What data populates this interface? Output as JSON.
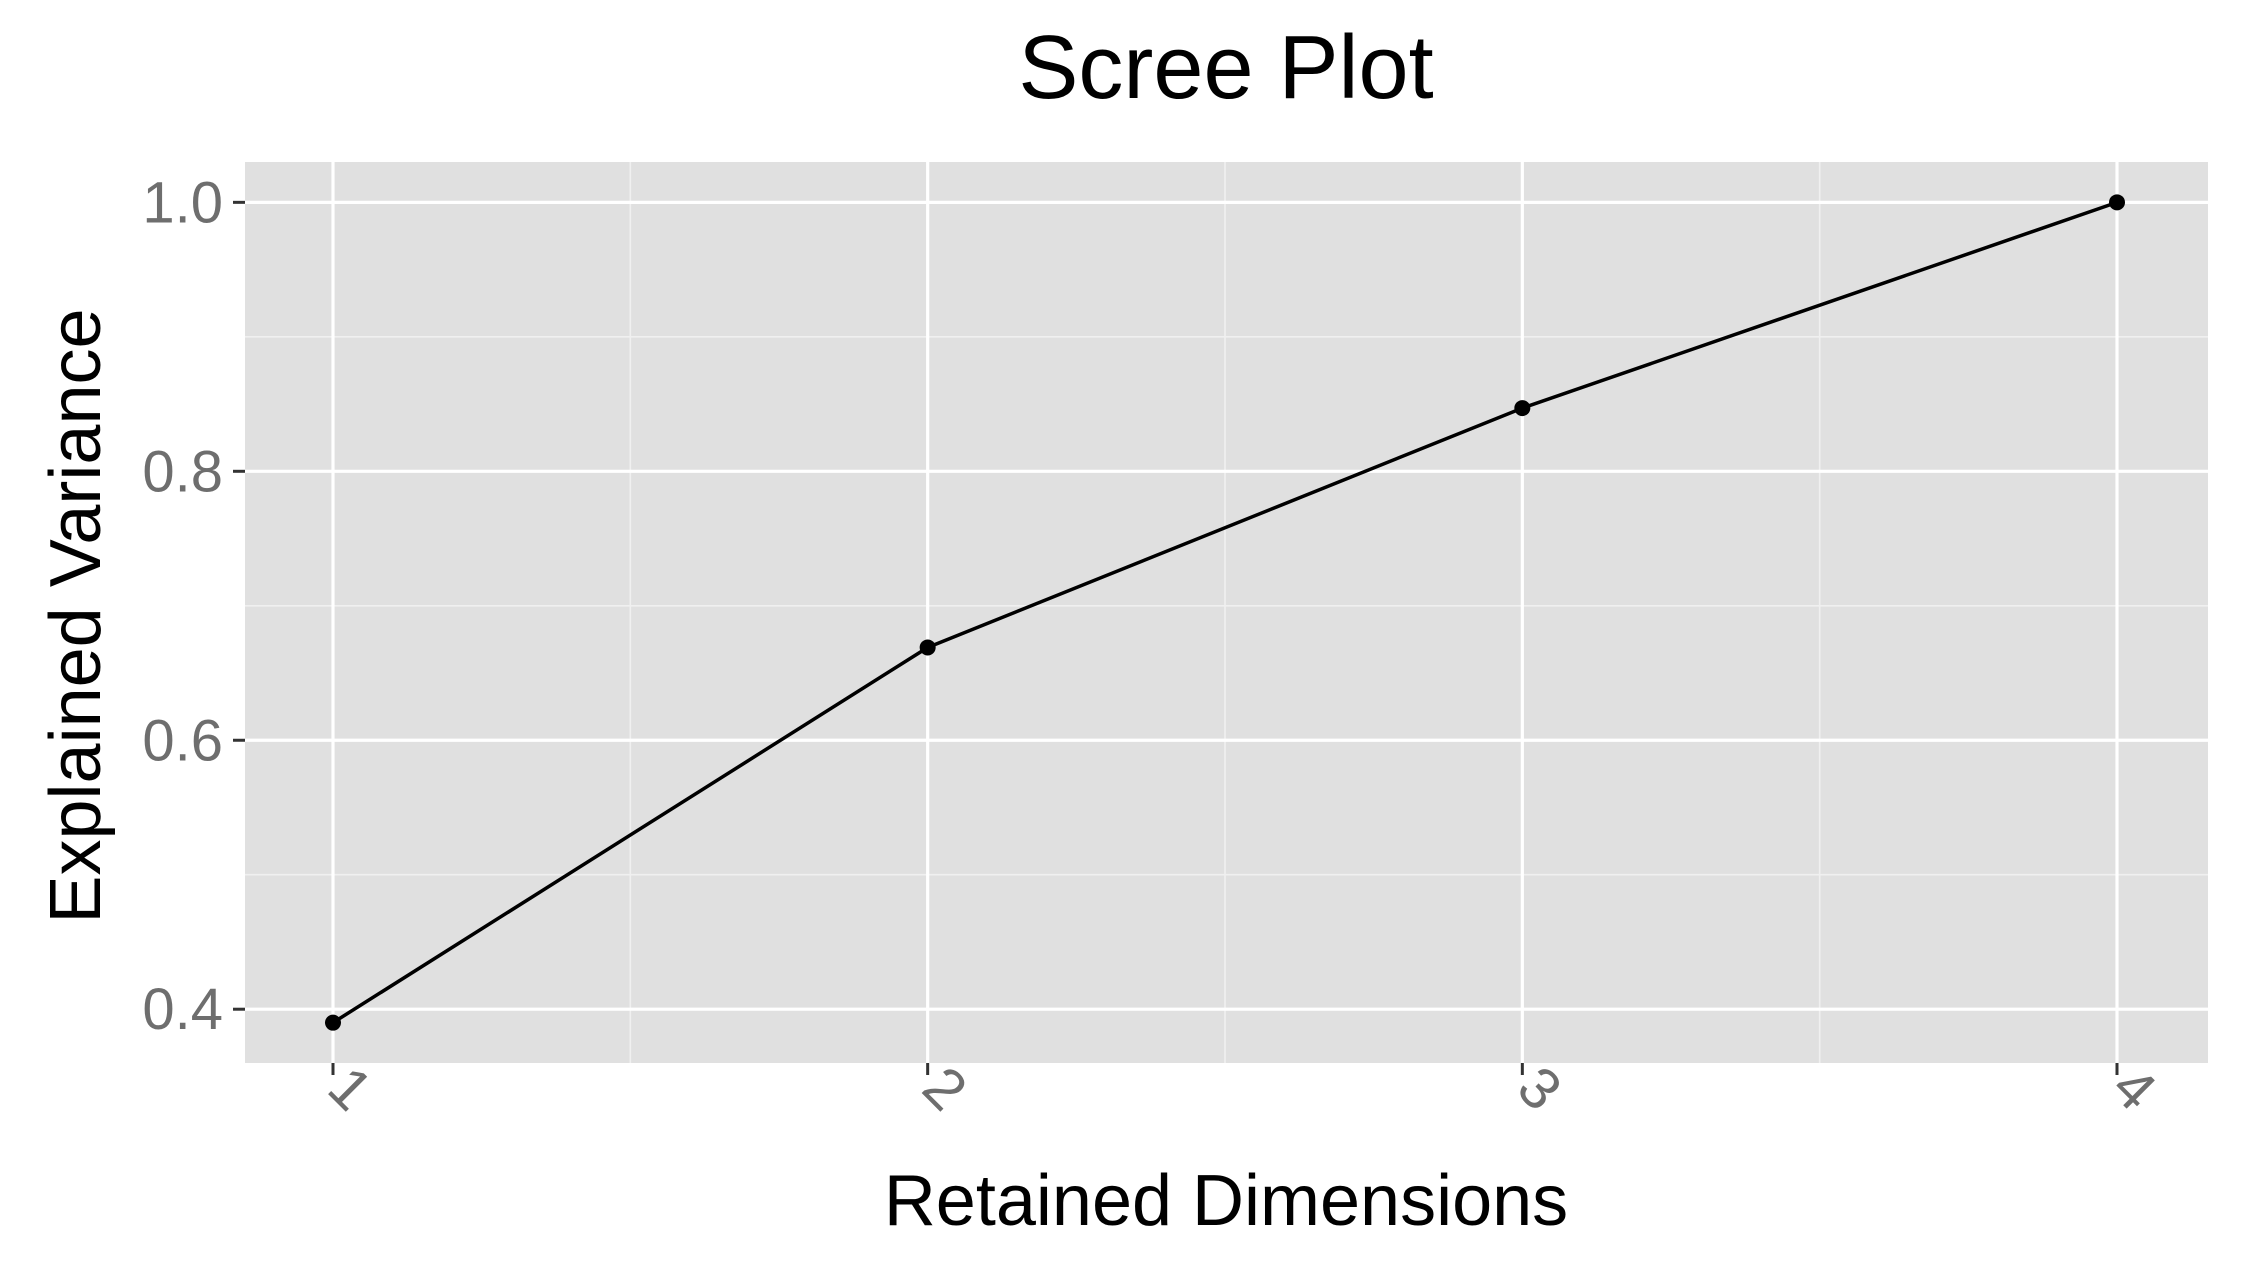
{
  "chart_data": {
    "type": "line",
    "title": "Scree Plot",
    "xlabel": "Retained Dimensions",
    "ylabel": "Explained Variance",
    "categories": [
      "1",
      "2",
      "3",
      "4"
    ],
    "values": [
      0.39,
      0.669,
      0.847,
      1.0
    ],
    "ylim": [
      0.36,
      1.03
    ],
    "yticks": [
      0.4,
      0.6,
      0.8,
      1.0
    ],
    "ytick_labels": [
      "0.4",
      "0.6",
      "0.8",
      "1.0"
    ],
    "grid": true,
    "x_tick_label_rotation": "45deg",
    "colors": {
      "panel_background": "#e0e0e0",
      "grid": "#ffffff",
      "series": "#000000",
      "tick_label": "#6e6e6e"
    }
  }
}
